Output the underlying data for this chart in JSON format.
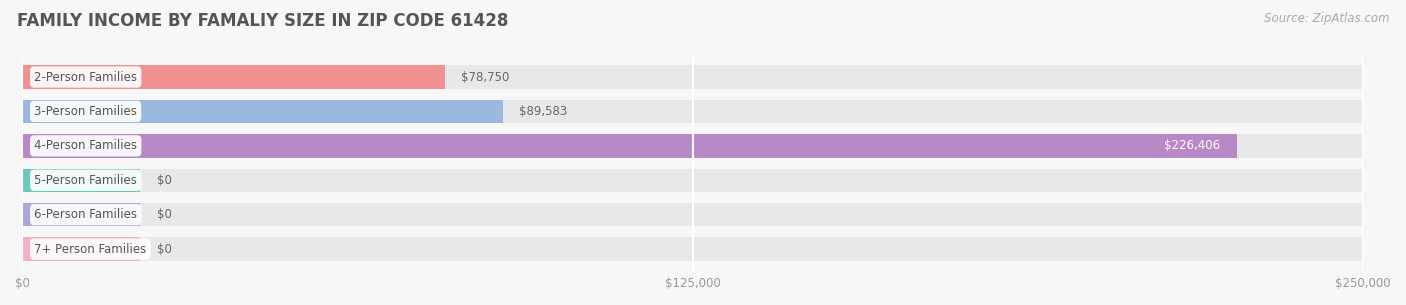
{
  "title": "FAMILY INCOME BY FAMALIY SIZE IN ZIP CODE 61428",
  "source": "Source: ZipAtlas.com",
  "categories": [
    "2-Person Families",
    "3-Person Families",
    "4-Person Families",
    "5-Person Families",
    "6-Person Families",
    "7+ Person Families"
  ],
  "values": [
    78750,
    89583,
    226406,
    0,
    0,
    0
  ],
  "bar_colors": [
    "#f09090",
    "#9ab8e0",
    "#b888c8",
    "#6cc9bc",
    "#a9a8d8",
    "#f4b0c4"
  ],
  "value_labels": [
    "$78,750",
    "$89,583",
    "$226,406",
    "$0",
    "$0",
    "$0"
  ],
  "value_label_color_226406": "#ffffff",
  "xlim": [
    0,
    250000
  ],
  "xticks": [
    0,
    125000,
    250000
  ],
  "xtick_labels": [
    "$0",
    "$125,000",
    "$250,000"
  ],
  "bg_color": "#f7f7f7",
  "bar_bg_color": "#e8e8e8",
  "title_fontsize": 12,
  "label_fontsize": 8.5,
  "value_fontsize": 8.5,
  "source_fontsize": 8.5,
  "bar_height": 0.68,
  "figsize": [
    14.06,
    3.05
  ],
  "dpi": 100,
  "zero_bar_width": 22000
}
